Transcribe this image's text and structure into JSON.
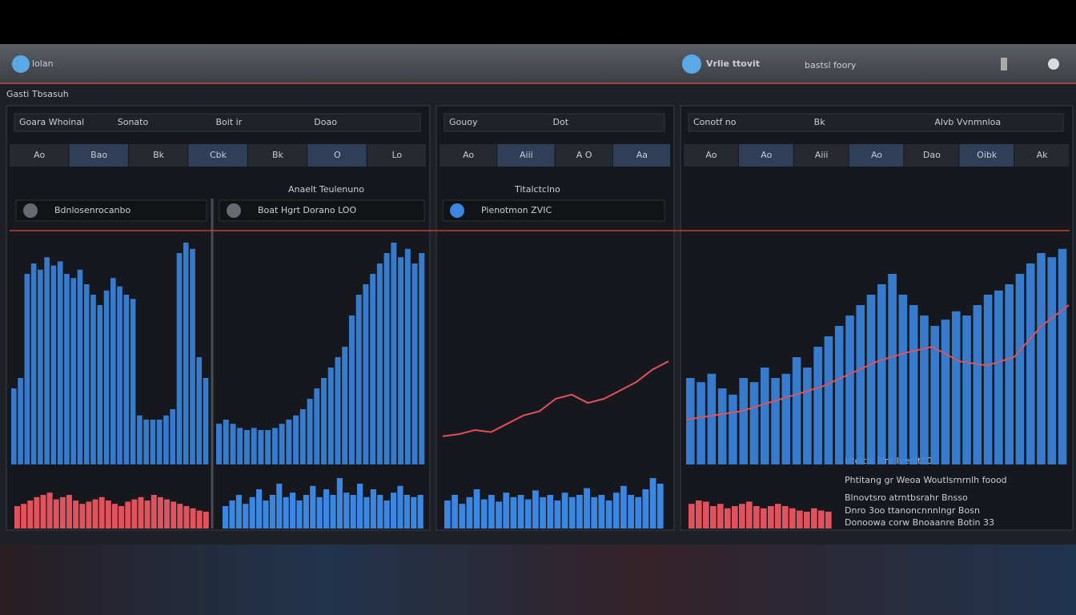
{
  "app": {
    "name": "lolan",
    "title": "Vrlie ttovit",
    "subtitle": "bastsl foory"
  },
  "toolbar_label": "Gasti Tbsasuh",
  "panels": [
    {
      "header": [
        "Goara Whoinal",
        "Sonato",
        "Boit ir",
        "Doao"
      ],
      "tabs": [
        "Ao",
        "Bao",
        "Bk",
        "Cbk",
        "Bk",
        "O",
        "Lo"
      ]
    },
    {
      "header": [
        "Gouoy",
        "Dot"
      ],
      "tabs": [
        "Ao",
        "Aiii",
        "A O",
        "Aa"
      ]
    },
    {
      "header": [
        "Conotf no",
        "Bk",
        "Alvb Vvnmnloa"
      ],
      "tabs": [
        "Ao",
        "Ao",
        "Aiii",
        "Ao",
        "Dao",
        "Oibk",
        "Ak"
      ]
    }
  ],
  "charts": [
    {
      "caption": "Bdnlosenrocanbo",
      "bars": [
        25,
        30,
        80,
        85,
        82,
        88,
        84,
        86,
        80,
        78,
        82,
        75,
        70,
        65,
        72,
        78,
        74,
        70,
        68,
        12,
        10,
        10,
        10,
        12,
        15,
        90,
        95,
        92,
        40,
        30
      ],
      "low": [
        20,
        22,
        25,
        28,
        30,
        32,
        26,
        28,
        30,
        25,
        22,
        24,
        26,
        28,
        25,
        22,
        20,
        24,
        26,
        28,
        25,
        30,
        28,
        26,
        24,
        22,
        20,
        18,
        16,
        15
      ],
      "low_color": "#e0525c",
      "color": "#3a86e0"
    },
    {
      "caption": "Boat Hgrt  Dorano LOO",
      "title": "Anaelt Teulenuno",
      "bars": [
        8,
        10,
        8,
        6,
        5,
        6,
        5,
        5,
        6,
        8,
        10,
        12,
        15,
        20,
        25,
        30,
        35,
        40,
        45,
        60,
        70,
        75,
        80,
        85,
        90,
        95,
        88,
        92,
        85,
        90
      ],
      "low": [
        20,
        25,
        30,
        22,
        28,
        35,
        25,
        30,
        40,
        28,
        32,
        25,
        30,
        38,
        28,
        35,
        30,
        45,
        32,
        30,
        40,
        28,
        35,
        30,
        25,
        32,
        38,
        30,
        28,
        30
      ],
      "low_color": "#3a86e0",
      "color": "#3a86e0"
    },
    {
      "caption": "Pienotmon  ZVIC",
      "title": "Titalctclno",
      "line": [
        2,
        3,
        5,
        4,
        8,
        12,
        14,
        20,
        22,
        18,
        20,
        24,
        28,
        34,
        38
      ],
      "line_color": "#e0525c",
      "low": [
        25,
        30,
        22,
        28,
        35,
        26,
        30,
        24,
        32,
        28,
        30,
        26,
        34,
        28,
        30,
        25,
        32,
        28,
        30,
        36,
        28,
        30,
        25,
        32,
        38,
        30,
        28,
        35,
        45,
        40
      ],
      "low_color": "#3a86e0"
    },
    {
      "bars": [
        30,
        28,
        32,
        25,
        22,
        30,
        28,
        35,
        30,
        32,
        40,
        35,
        45,
        50,
        55,
        60,
        65,
        70,
        75,
        80,
        70,
        65,
        60,
        55,
        58,
        62,
        60,
        65,
        70,
        72,
        75,
        80,
        85,
        90,
        88,
        92
      ],
      "line": [
        10,
        12,
        14,
        18,
        22,
        26,
        32,
        38,
        42,
        45,
        38,
        36,
        40,
        55,
        65
      ],
      "line_color": "#e0525c",
      "color": "#3a86e0",
      "low": [
        22,
        25,
        24,
        20,
        22,
        18,
        20,
        22,
        24,
        20,
        18,
        20,
        22,
        20,
        18,
        16,
        15,
        18,
        16,
        15
      ],
      "low_color": "#e0525c"
    }
  ],
  "side": {
    "title": "Htclclc Plre Ivenlt10",
    "subtitle": "Phtitang gr Weoa Woutlsrnrnlh foood",
    "rows": [
      "Blnovtsro atrntbsrahr  Bnsso",
      "Dnro 3oo ttanoncnnnlngr  Bosn",
      "Donoowa corw Bnoaanre  Botin 33"
    ]
  }
}
